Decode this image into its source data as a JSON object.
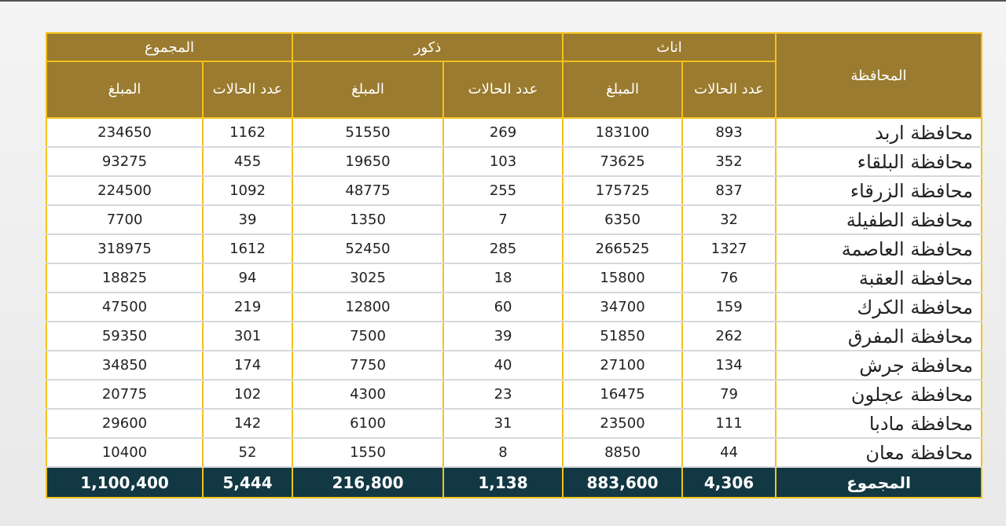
{
  "table": {
    "header": {
      "governorate": "المحافظة",
      "groups": [
        "اناث",
        "ذكور",
        "المجموع"
      ],
      "sub": [
        "عدد الحالات",
        "المبلغ",
        "عدد الحالات",
        "المبلغ",
        "عدد الحالات",
        "المبلغ"
      ]
    },
    "rows": [
      [
        "محافظة اربد",
        893,
        183100,
        269,
        51550,
        1162,
        234650
      ],
      [
        "محافظة البلقاء",
        352,
        73625,
        103,
        19650,
        455,
        93275
      ],
      [
        "محافظة الزرقاء",
        837,
        175725,
        255,
        48775,
        1092,
        224500
      ],
      [
        "محافظة الطفيلة",
        32,
        6350,
        7,
        1350,
        39,
        7700
      ],
      [
        "محافظة العاصمة",
        1327,
        266525,
        285,
        52450,
        1612,
        318975
      ],
      [
        "محافظة العقبة",
        76,
        15800,
        18,
        3025,
        94,
        18825
      ],
      [
        "محافظة الكرك",
        159,
        34700,
        60,
        12800,
        219,
        47500
      ],
      [
        "محافظة المفرق",
        262,
        51850,
        39,
        7500,
        301,
        59350
      ],
      [
        "محافظة جرش",
        134,
        27100,
        40,
        7750,
        174,
        34850
      ],
      [
        "محافظة عجلون",
        79,
        16475,
        23,
        4300,
        102,
        20775
      ],
      [
        "محافظة مادبا",
        111,
        23500,
        31,
        6100,
        142,
        29600
      ],
      [
        "محافظة معان",
        44,
        8850,
        8,
        1550,
        52,
        10400
      ]
    ],
    "total": [
      "المجموع",
      "4,306",
      "883,600",
      "1,138",
      "216,800",
      "5,444",
      "1,100,400"
    ]
  }
}
